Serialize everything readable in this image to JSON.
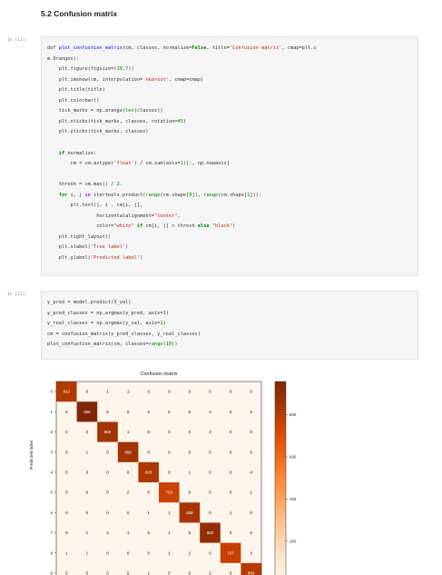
{
  "section_heading": "5.2 Confusion matrix",
  "cells": [
    {
      "prompt": "In [11]:",
      "lines": [
        [
          [
            "t",
            "def "
          ],
          [
            "f",
            "plot_confustion_matrix"
          ],
          [
            "t",
            "(cm, classes, normalize="
          ],
          [
            "k",
            "False"
          ],
          [
            "t",
            ", title="
          ],
          [
            "s",
            "'Confusion matrix'"
          ],
          [
            "t",
            ", cmap=plt.c"
          ]
        ],
        [
          [
            "t",
            "m.Oranges):"
          ]
        ],
        [
          [
            "t",
            "    plt.figure(figsize=("
          ],
          [
            "n",
            "10"
          ],
          [
            "t",
            ","
          ],
          [
            "n",
            "7"
          ],
          [
            "t",
            "))"
          ]
        ],
        [
          [
            "t",
            "    plt.imshow(cm, interpolation="
          ],
          [
            "s",
            "'nearest'"
          ],
          [
            "t",
            ", cmap=cmap)"
          ]
        ],
        [
          [
            "t",
            "    plt.title(title)"
          ]
        ],
        [
          [
            "t",
            "    plt.colorbar()"
          ]
        ],
        [
          [
            "t",
            "    tick_marks = np.arange("
          ],
          [
            "b",
            "len"
          ],
          [
            "t",
            "(classes))"
          ]
        ],
        [
          [
            "t",
            "    plt.xticks(tick_marks, classes, rotation="
          ],
          [
            "n",
            "45"
          ],
          [
            "t",
            ")"
          ]
        ],
        [
          [
            "t",
            "    plt.yticks(tick_marks, classes)"
          ]
        ],
        [
          [
            "t",
            ""
          ]
        ],
        [
          [
            "t",
            "    "
          ],
          [
            "k",
            "if"
          ],
          [
            "t",
            " normalize:"
          ]
        ],
        [
          [
            "t",
            "        cm = cm.astype("
          ],
          [
            "s",
            "'float'"
          ],
          [
            "t",
            ") / cm.sum(axis="
          ],
          [
            "n",
            "1"
          ],
          [
            "t",
            ")[:, np.newaxis]"
          ]
        ],
        [
          [
            "t",
            ""
          ]
        ],
        [
          [
            "t",
            "    thresh = cm.max() / "
          ],
          [
            "n",
            "2."
          ]
        ],
        [
          [
            "t",
            "    "
          ],
          [
            "k",
            "for"
          ],
          [
            "t",
            " i, j "
          ],
          [
            "o",
            "in"
          ],
          [
            "t",
            " itertools.product("
          ],
          [
            "b",
            "range"
          ],
          [
            "t",
            "(cm.shape["
          ],
          [
            "n",
            "0"
          ],
          [
            "t",
            "]), "
          ],
          [
            "b",
            "range"
          ],
          [
            "t",
            "(cm.shape["
          ],
          [
            "n",
            "1"
          ],
          [
            "t",
            "])):"
          ]
        ],
        [
          [
            "t",
            "        plt.text(j, i , cm[i, j],"
          ]
        ],
        [
          [
            "t",
            "                 horizontalalignment="
          ],
          [
            "s",
            "\"center\""
          ],
          [
            "t",
            ","
          ]
        ],
        [
          [
            "t",
            "                 color="
          ],
          [
            "s",
            "\"white\""
          ],
          [
            "t",
            " "
          ],
          [
            "k",
            "if"
          ],
          [
            "t",
            " cm[i, j] > thresh "
          ],
          [
            "k",
            "else"
          ],
          [
            "t",
            " "
          ],
          [
            "s",
            "\"black\""
          ],
          [
            "t",
            ")"
          ]
        ],
        [
          [
            "t",
            "    plt.tight_layout()"
          ]
        ],
        [
          [
            "t",
            "    plt.xlabel("
          ],
          [
            "s",
            "'True label'"
          ],
          [
            "t",
            ")"
          ]
        ],
        [
          [
            "t",
            "    plt.ylabel("
          ],
          [
            "s",
            "'Predicted label'"
          ],
          [
            "t",
            ")"
          ]
        ]
      ]
    },
    {
      "prompt": "In [12]:",
      "lines": [
        [
          [
            "t",
            "y_pred = model.predict(X_val)"
          ]
        ],
        [
          [
            "t",
            "y_pred_classes = np.argmax(y_pred, axis="
          ],
          [
            "n",
            "1"
          ],
          [
            "t",
            ")"
          ]
        ],
        [
          [
            "t",
            "y_real_classes = np.argmax(y_val, axis="
          ],
          [
            "n",
            "1"
          ],
          [
            "t",
            ")"
          ]
        ],
        [
          [
            "t",
            "cm = confusion_matrix(y_pred_classes, y_real_classes)"
          ]
        ],
        [
          [
            "t",
            "plot_confustion_matrix(cm, classes="
          ],
          [
            "b",
            "range"
          ],
          [
            "t",
            "("
          ],
          [
            "n",
            "10"
          ],
          [
            "t",
            "))"
          ]
        ]
      ]
    }
  ],
  "chart_data": {
    "type": "heatmap",
    "title": "Confusion matrix",
    "ylabel": "Predicted label",
    "xlabel": "",
    "classes": [
      "0",
      "1",
      "2",
      "3",
      "4",
      "5",
      "6",
      "7",
      "8",
      "9"
    ],
    "cmap": "Oranges",
    "matrix": [
      [
        812,
        0,
        1,
        1,
        0,
        0,
        0,
        0,
        0,
        0
      ],
      [
        0,
        958,
        0,
        0,
        2,
        0,
        0,
        2,
        0,
        0
      ],
      [
        0,
        0,
        856,
        1,
        0,
        0,
        0,
        3,
        0,
        0
      ],
      [
        0,
        1,
        0,
        858,
        0,
        0,
        0,
        0,
        0,
        0
      ],
      [
        0,
        0,
        0,
        0,
        823,
        0,
        1,
        0,
        0,
        4
      ],
      [
        0,
        0,
        0,
        2,
        0,
        753,
        0,
        0,
        0,
        1
      ],
      [
        0,
        0,
        0,
        0,
        1,
        1,
        838,
        0,
        1,
        0
      ],
      [
        0,
        1,
        3,
        1,
        0,
        1,
        0,
        892,
        0,
        0
      ],
      [
        1,
        1,
        0,
        0,
        0,
        1,
        2,
        0,
        767,
        3
      ],
      [
        0,
        0,
        0,
        0,
        1,
        0,
        0,
        2,
        0,
        804
      ]
    ],
    "colorbar_ticks": [
      200,
      400,
      600,
      800
    ],
    "colorbar_range": [
      0,
      958
    ]
  }
}
